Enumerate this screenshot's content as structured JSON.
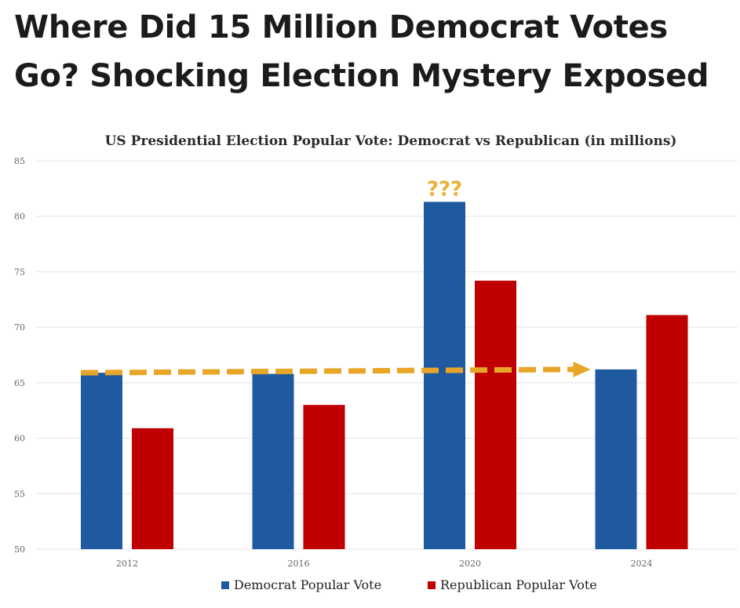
{
  "headline": "Where Did 15 Million Democrat Votes Go? Shocking Election Mystery Exposed",
  "chart_data": {
    "type": "bar",
    "title": "US Presidential Election Popular Vote: Democrat vs Republican (in millions)",
    "categories": [
      "2012",
      "2016",
      "2020",
      "2024"
    ],
    "series": [
      {
        "name": "Democrat Popular Vote",
        "color": "#1f5aa0",
        "values": [
          65.9,
          65.8,
          81.3,
          66.2
        ]
      },
      {
        "name": "Republican Popular Vote",
        "color": "#c00000",
        "values": [
          60.9,
          63.0,
          74.2,
          71.1
        ]
      }
    ],
    "ylim": [
      50,
      85
    ],
    "yticks": [
      "50",
      "55",
      "60",
      "65",
      "70",
      "75",
      "80",
      "85"
    ],
    "xlabel": "",
    "ylabel": "",
    "grid": true,
    "legend_position": "bottom",
    "annotations": [
      {
        "text": "???",
        "category": "2020",
        "color": "#e8b23a"
      }
    ],
    "trend_arrow": {
      "style": "dashed",
      "color": "#e8a628",
      "from_category": "2012",
      "to_category": "2024",
      "from_value": 65.9,
      "to_value": 66.2
    }
  }
}
